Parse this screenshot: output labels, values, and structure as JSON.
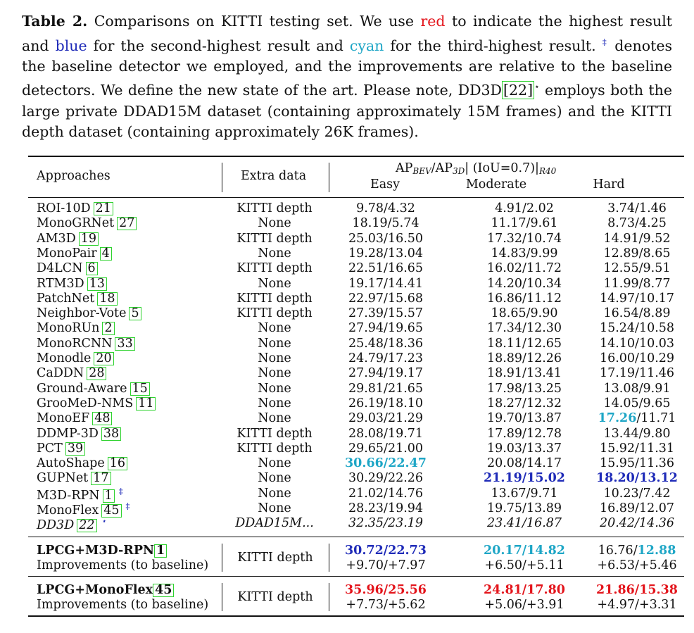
{
  "caption": {
    "label": "Table 2.",
    "part1": " Comparisons on KITTI testing set. We use ",
    "red_word": "red",
    "part2": " to indicate the highest result and ",
    "blue_word": "blue",
    "part3": " for the second-highest result and ",
    "cyan_word": "cyan",
    "part4": " for the third-highest result. ",
    "dagger": "‡",
    "part5": " denotes the baseline detector we employed, and the improvements are relative to the baseline detectors. We define the new state of the art. Please note, DD3D",
    "cite": "[22]",
    "star": "⋆",
    "part6": " employs both the large private DDAD15M dataset (containing approximately 15M frames) and the KITTI depth dataset (containing approximately 26K frames)."
  },
  "header": {
    "approaches": "Approaches",
    "extra_data": "Extra data",
    "metric_ap": "AP",
    "metric_bev": "BEV",
    "metric_sep": "/AP",
    "metric_3d": "3D",
    "metric_rest": "| (IoU=0.7)|",
    "metric_r40": "R40",
    "easy": "Easy",
    "moderate": "Moderate",
    "hard": "Hard"
  },
  "rows": [
    {
      "name": "ROI-10D",
      "ref": "21",
      "extra": "KITTI depth",
      "easy": "9.78/4.32",
      "moderate": "4.91/2.02",
      "hard": "3.74/1.46"
    },
    {
      "name": "MonoGRNet",
      "ref": "27",
      "extra": "None",
      "easy": "18.19/5.74",
      "moderate": "11.17/9.61",
      "hard": "8.73/4.25"
    },
    {
      "name": "AM3D",
      "ref": "19",
      "extra": "KITTI depth",
      "easy": "25.03/16.50",
      "moderate": "17.32/10.74",
      "hard": "14.91/9.52"
    },
    {
      "name": "MonoPair",
      "ref": "4",
      "extra": "None",
      "easy": "19.28/13.04",
      "moderate": "14.83/9.99",
      "hard": "12.89/8.65"
    },
    {
      "name": "D4LCN",
      "ref": "6",
      "extra": "KITTI depth",
      "easy": "22.51/16.65",
      "moderate": "16.02/11.72",
      "hard": "12.55/9.51"
    },
    {
      "name": "RTM3D",
      "ref": "13",
      "extra": "None",
      "easy": "19.17/14.41",
      "moderate": "14.20/10.34",
      "hard": "11.99/8.77"
    },
    {
      "name": "PatchNet",
      "ref": "18",
      "extra": "KITTI depth",
      "easy": "22.97/15.68",
      "moderate": "16.86/11.12",
      "hard": "14.97/10.17"
    },
    {
      "name": "Neighbor-Vote",
      "ref": "5",
      "extra": "KITTI depth",
      "easy": "27.39/15.57",
      "moderate": "18.65/9.90",
      "hard": "16.54/8.89"
    },
    {
      "name": "MonoRUn",
      "ref": "2",
      "extra": "None",
      "easy": "27.94/19.65",
      "moderate": "17.34/12.30",
      "hard": "15.24/10.58"
    },
    {
      "name": "MonoRCNN",
      "ref": "33",
      "extra": "None",
      "easy": "25.48/18.36",
      "moderate": "18.11/12.65",
      "hard": "14.10/10.03"
    },
    {
      "name": "Monodle",
      "ref": "20",
      "extra": "None",
      "easy": "24.79/17.23",
      "moderate": "18.89/12.26",
      "hard": "16.00/10.29"
    },
    {
      "name": "CaDDN",
      "ref": "28",
      "extra": "None",
      "easy": "27.94/19.17",
      "moderate": "18.91/13.41",
      "hard": "17.19/11.46"
    },
    {
      "name": "Ground-Aware",
      "ref": "15",
      "extra": "None",
      "easy": "29.81/21.65",
      "moderate": "17.98/13.25",
      "hard": "13.08/9.91"
    },
    {
      "name": "GrooMeD-NMS",
      "ref": "11",
      "extra": "None",
      "easy": "26.19/18.10",
      "moderate": "18.27/12.32",
      "hard": "14.05/9.65"
    },
    {
      "name": "MonoEF",
      "ref": "48",
      "extra": "None",
      "easy": "29.03/21.29",
      "moderate": "19.70/13.87",
      "hard_a": "17.26",
      "hard_b": "/11.71"
    },
    {
      "name": "DDMP-3D",
      "ref": "38",
      "extra": "KITTI depth",
      "easy": "28.08/19.71",
      "moderate": "17.89/12.78",
      "hard": "13.44/9.80"
    },
    {
      "name": "PCT",
      "ref": "39",
      "extra": "KITTI depth",
      "easy": "29.65/21.00",
      "moderate": "19.03/13.37",
      "hard": "15.92/11.31"
    },
    {
      "name": "AutoShape",
      "ref": "16",
      "extra": "None",
      "easy": "30.66/22.47",
      "moderate": "20.08/14.17",
      "hard": "15.95/11.36"
    },
    {
      "name": "GUPNet",
      "ref": "17",
      "extra": "None",
      "easy": "30.29/22.26",
      "moderate": "21.19/15.02",
      "hard": "18.20/13.12"
    },
    {
      "name": "M3D-RPN",
      "ref": "1",
      "mark": "‡",
      "extra": "None",
      "easy": "21.02/14.76",
      "moderate": "13.67/9.71",
      "hard": "10.23/7.42"
    },
    {
      "name": "MonoFlex",
      "ref": "45",
      "mark": "‡",
      "extra": "None",
      "easy": "28.23/19.94",
      "moderate": "19.75/13.89",
      "hard": "16.89/12.07"
    },
    {
      "name": "DD3D",
      "ref": "22",
      "mark": "⋆",
      "extra": "DDAD15M...",
      "easy": "32.35/23.19",
      "moderate": "23.41/16.87",
      "hard": "20.42/14.36"
    }
  ],
  "lpcg_m3d": {
    "name": "LPCG+M3D-RPN",
    "ref": "1",
    "improve_label": "Improvements (to baseline)",
    "extra": "KITTI depth",
    "easy": "30.72/22.73",
    "moderate": "20.17/14.82",
    "hard_a": "16.76/",
    "hard_b": "12.88",
    "imp_easy": "+9.70/+7.97",
    "imp_moderate": "+6.50/+5.11",
    "imp_hard": "+6.53/+5.46"
  },
  "lpcg_monoflex": {
    "name": "LPCG+MonoFlex",
    "ref": "45",
    "improve_label": "Improvements (to baseline)",
    "extra": "KITTI depth",
    "easy": "35.96/25.56",
    "moderate": "24.81/17.80",
    "hard": "21.86/15.38",
    "imp_easy": "+7.73/+5.62",
    "imp_moderate": "+5.06/+3.91",
    "imp_hard": "+4.97/+3.31"
  },
  "colors": {
    "red": "#e3141b",
    "blue": "#1f2bb8",
    "cyan": "#1ea6c6",
    "cite_box": "#2fd22f"
  }
}
